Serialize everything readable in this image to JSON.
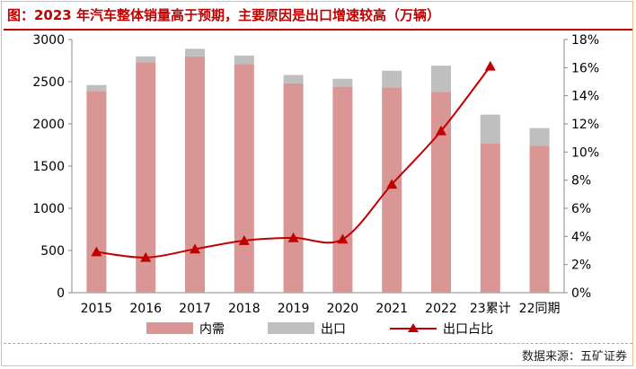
{
  "title": "图：2023 年汽车整体销量高于预期，主要原因是出口增速较高（万辆）",
  "source": "数据来源：五矿证券",
  "chart_data": {
    "type": "bar",
    "stacked": true,
    "categories": [
      "2015",
      "2016",
      "2017",
      "2018",
      "2019",
      "2020",
      "2021",
      "2022",
      "23累计",
      "22同期"
    ],
    "series": [
      {
        "name": "内需",
        "type": "bar",
        "axis": "left",
        "color": "#d99694",
        "values": [
          2390,
          2730,
          2800,
          2710,
          2480,
          2440,
          2430,
          2380,
          1770,
          1740
        ]
      },
      {
        "name": "出口",
        "type": "bar",
        "axis": "left",
        "color": "#bfbfbf",
        "values": [
          70,
          70,
          90,
          100,
          100,
          95,
          200,
          310,
          340,
          210
        ]
      },
      {
        "name": "出口占比",
        "type": "line",
        "axis": "right",
        "color": "#c00000",
        "marker": "triangle",
        "values": [
          2.9,
          2.5,
          3.1,
          3.7,
          3.9,
          3.8,
          7.7,
          11.5,
          16.1,
          null
        ]
      }
    ],
    "ylim_left": [
      0,
      3000
    ],
    "yticks_left": [
      "0",
      "500",
      "1000",
      "1500",
      "2000",
      "2500",
      "3000"
    ],
    "ylim_right": [
      0,
      18
    ],
    "yticks_right": [
      "0%",
      "2%",
      "4%",
      "6%",
      "8%",
      "10%",
      "12%",
      "14%",
      "16%",
      "18%"
    ],
    "grid": false,
    "legend_position": "bottom"
  }
}
